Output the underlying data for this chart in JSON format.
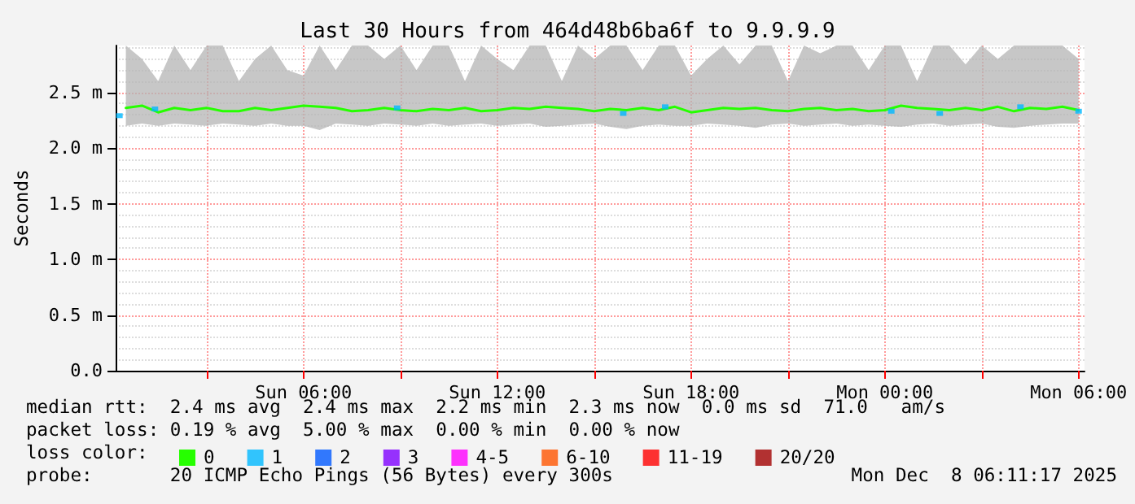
{
  "chart_data": {
    "type": "line",
    "title": "Last 30 Hours from 464d48b6ba6f to 9.9.9.9",
    "ylabel": "Seconds",
    "legend_title": "loss color:",
    "legend": "bottom",
    "grid": true,
    "line_style": "solid",
    "xlim": [
      "2025-12-07T00:11",
      "2025-12-08T06:11"
    ],
    "xticks": [
      {
        "value": "2025-12-07T03:00",
        "label": null
      },
      {
        "value": "2025-12-07T06:00",
        "label": "Sun 06:00"
      },
      {
        "value": "2025-12-07T09:00",
        "label": null
      },
      {
        "value": "2025-12-07T12:00",
        "label": "Sun 12:00"
      },
      {
        "value": "2025-12-07T15:00",
        "label": null
      },
      {
        "value": "2025-12-07T18:00",
        "label": "Sun 18:00"
      },
      {
        "value": "2025-12-07T21:00",
        "label": null
      },
      {
        "value": "2025-12-08T00:00",
        "label": "Mon 00:00"
      },
      {
        "value": "2025-12-08T03:00",
        "label": null
      },
      {
        "value": "2025-12-08T06:00",
        "label": "Mon 06:00"
      }
    ],
    "ylim": [
      0,
      2.92
    ],
    "yticks": [
      {
        "value": 0,
        "label": "0.0"
      },
      {
        "value": 0.5,
        "label": "0.5 m"
      },
      {
        "value": 1.0,
        "label": "1.0 m"
      },
      {
        "value": 1.5,
        "label": "1.5 m"
      },
      {
        "value": 2.0,
        "label": "2.0 m"
      },
      {
        "value": 2.5,
        "label": "2.5 m"
      }
    ],
    "series": [
      {
        "name": "0",
        "color": "#26ff00",
        "marker": "none",
        "x": [
          "2025-12-07T00:30",
          "2025-12-07T01:00",
          "2025-12-07T01:30",
          "2025-12-07T02:00",
          "2025-12-07T02:30",
          "2025-12-07T03:00",
          "2025-12-07T03:30",
          "2025-12-07T04:00",
          "2025-12-07T04:30",
          "2025-12-07T05:00",
          "2025-12-07T05:30",
          "2025-12-07T06:00",
          "2025-12-07T06:30",
          "2025-12-07T07:00",
          "2025-12-07T07:30",
          "2025-12-07T08:00",
          "2025-12-07T08:30",
          "2025-12-07T09:00",
          "2025-12-07T09:30",
          "2025-12-07T10:00",
          "2025-12-07T10:30",
          "2025-12-07T11:00",
          "2025-12-07T11:30",
          "2025-12-07T12:00",
          "2025-12-07T12:30",
          "2025-12-07T13:00",
          "2025-12-07T13:30",
          "2025-12-07T14:00",
          "2025-12-07T14:30",
          "2025-12-07T15:00",
          "2025-12-07T15:30",
          "2025-12-07T16:00",
          "2025-12-07T16:30",
          "2025-12-07T17:00",
          "2025-12-07T17:30",
          "2025-12-07T18:00",
          "2025-12-07T18:30",
          "2025-12-07T19:00",
          "2025-12-07T19:30",
          "2025-12-07T20:00",
          "2025-12-07T20:30",
          "2025-12-07T21:00",
          "2025-12-07T21:30",
          "2025-12-07T22:00",
          "2025-12-07T22:30",
          "2025-12-07T23:00",
          "2025-12-07T23:30",
          "2025-12-08T00:00",
          "2025-12-08T00:30",
          "2025-12-08T01:00",
          "2025-12-08T01:30",
          "2025-12-08T02:00",
          "2025-12-08T02:30",
          "2025-12-08T03:00",
          "2025-12-08T03:30",
          "2025-12-08T04:00",
          "2025-12-08T04:30",
          "2025-12-08T05:00",
          "2025-12-08T05:30",
          "2025-12-08T06:00"
        ],
        "values": [
          2.36,
          2.38,
          2.32,
          2.36,
          2.34,
          2.36,
          2.33,
          2.33,
          2.36,
          2.34,
          2.36,
          2.38,
          2.37,
          2.36,
          2.33,
          2.34,
          2.36,
          2.34,
          2.33,
          2.35,
          2.34,
          2.36,
          2.33,
          2.34,
          2.36,
          2.35,
          2.37,
          2.36,
          2.35,
          2.33,
          2.35,
          2.34,
          2.36,
          2.34,
          2.37,
          2.32,
          2.34,
          2.36,
          2.35,
          2.36,
          2.34,
          2.33,
          2.35,
          2.36,
          2.34,
          2.35,
          2.33,
          2.34,
          2.38,
          2.36,
          2.35,
          2.34,
          2.36,
          2.34,
          2.37,
          2.33,
          2.36,
          2.35,
          2.37,
          2.34
        ],
        "lower": [
          2.2,
          2.22,
          2.2,
          2.22,
          2.21,
          2.2,
          2.22,
          2.21,
          2.2,
          2.22,
          2.2,
          2.2,
          2.16,
          2.22,
          2.21,
          2.2,
          2.22,
          2.21,
          2.2,
          2.22,
          2.2,
          2.21,
          2.22,
          2.2,
          2.21,
          2.22,
          2.19,
          2.2,
          2.21,
          2.22,
          2.19,
          2.17,
          2.2,
          2.21,
          2.2,
          2.2,
          2.22,
          2.21,
          2.2,
          2.18,
          2.21,
          2.22,
          2.2,
          2.21,
          2.22,
          2.2,
          2.21,
          2.2,
          2.19,
          2.21,
          2.22,
          2.2,
          2.21,
          2.22,
          2.19,
          2.18,
          2.2,
          2.21,
          2.22,
          2.22
        ],
        "upper": [
          2.92,
          2.8,
          2.6,
          2.92,
          2.7,
          2.92,
          2.92,
          2.6,
          2.8,
          2.92,
          2.7,
          2.65,
          2.92,
          2.7,
          2.92,
          2.92,
          2.8,
          2.92,
          2.7,
          2.92,
          2.92,
          2.6,
          2.92,
          2.8,
          2.7,
          2.92,
          2.92,
          2.6,
          2.92,
          2.8,
          2.92,
          2.92,
          2.7,
          2.92,
          2.92,
          2.65,
          2.8,
          2.92,
          2.75,
          2.92,
          2.92,
          2.6,
          2.92,
          2.85,
          2.92,
          2.92,
          2.7,
          2.92,
          2.92,
          2.6,
          2.92,
          2.92,
          2.75,
          2.92,
          2.8,
          2.92,
          2.92,
          2.92,
          2.92,
          2.8
        ]
      },
      {
        "name": "1",
        "color": "#00b8ff",
        "type": "scatter",
        "marker": "square",
        "x": [
          "2025-12-07T00:18",
          "2025-12-07T01:24",
          "2025-12-07T08:54",
          "2025-12-07T15:54",
          "2025-12-07T17:12",
          "2025-12-08T00:12",
          "2025-12-08T01:42",
          "2025-12-08T04:12",
          "2025-12-08T06:00"
        ],
        "values": [
          2.29,
          2.35,
          2.36,
          2.31,
          2.37,
          2.33,
          2.31,
          2.37,
          2.33
        ]
      },
      {
        "name": "2",
        "color": "#0059ff",
        "type": "scatter"
      },
      {
        "name": "3",
        "color": "#7e00ff",
        "type": "scatter"
      },
      {
        "name": "4-5",
        "color": "#ff00ff",
        "type": "scatter"
      },
      {
        "name": "6-10",
        "color": "#ff5500",
        "type": "scatter"
      },
      {
        "name": "11-19",
        "color": "#ff0000",
        "type": "scatter"
      },
      {
        "name": "20/20",
        "color": "#a10000",
        "type": "scatter"
      }
    ],
    "annotations": [
      "median rtt:  2.4 ms avg  2.4 ms max  2.2 ms min  2.3 ms now  0.0 ms sd  71.0   am/s",
      "packet loss: 0.19 % avg  5.00 % max  0.00 % min  0.00 % now",
      "probe:       20 ICMP Echo Pings (56 Bytes) every 300s",
      "Mon Dec  8 06:11:17 2025"
    ]
  }
}
